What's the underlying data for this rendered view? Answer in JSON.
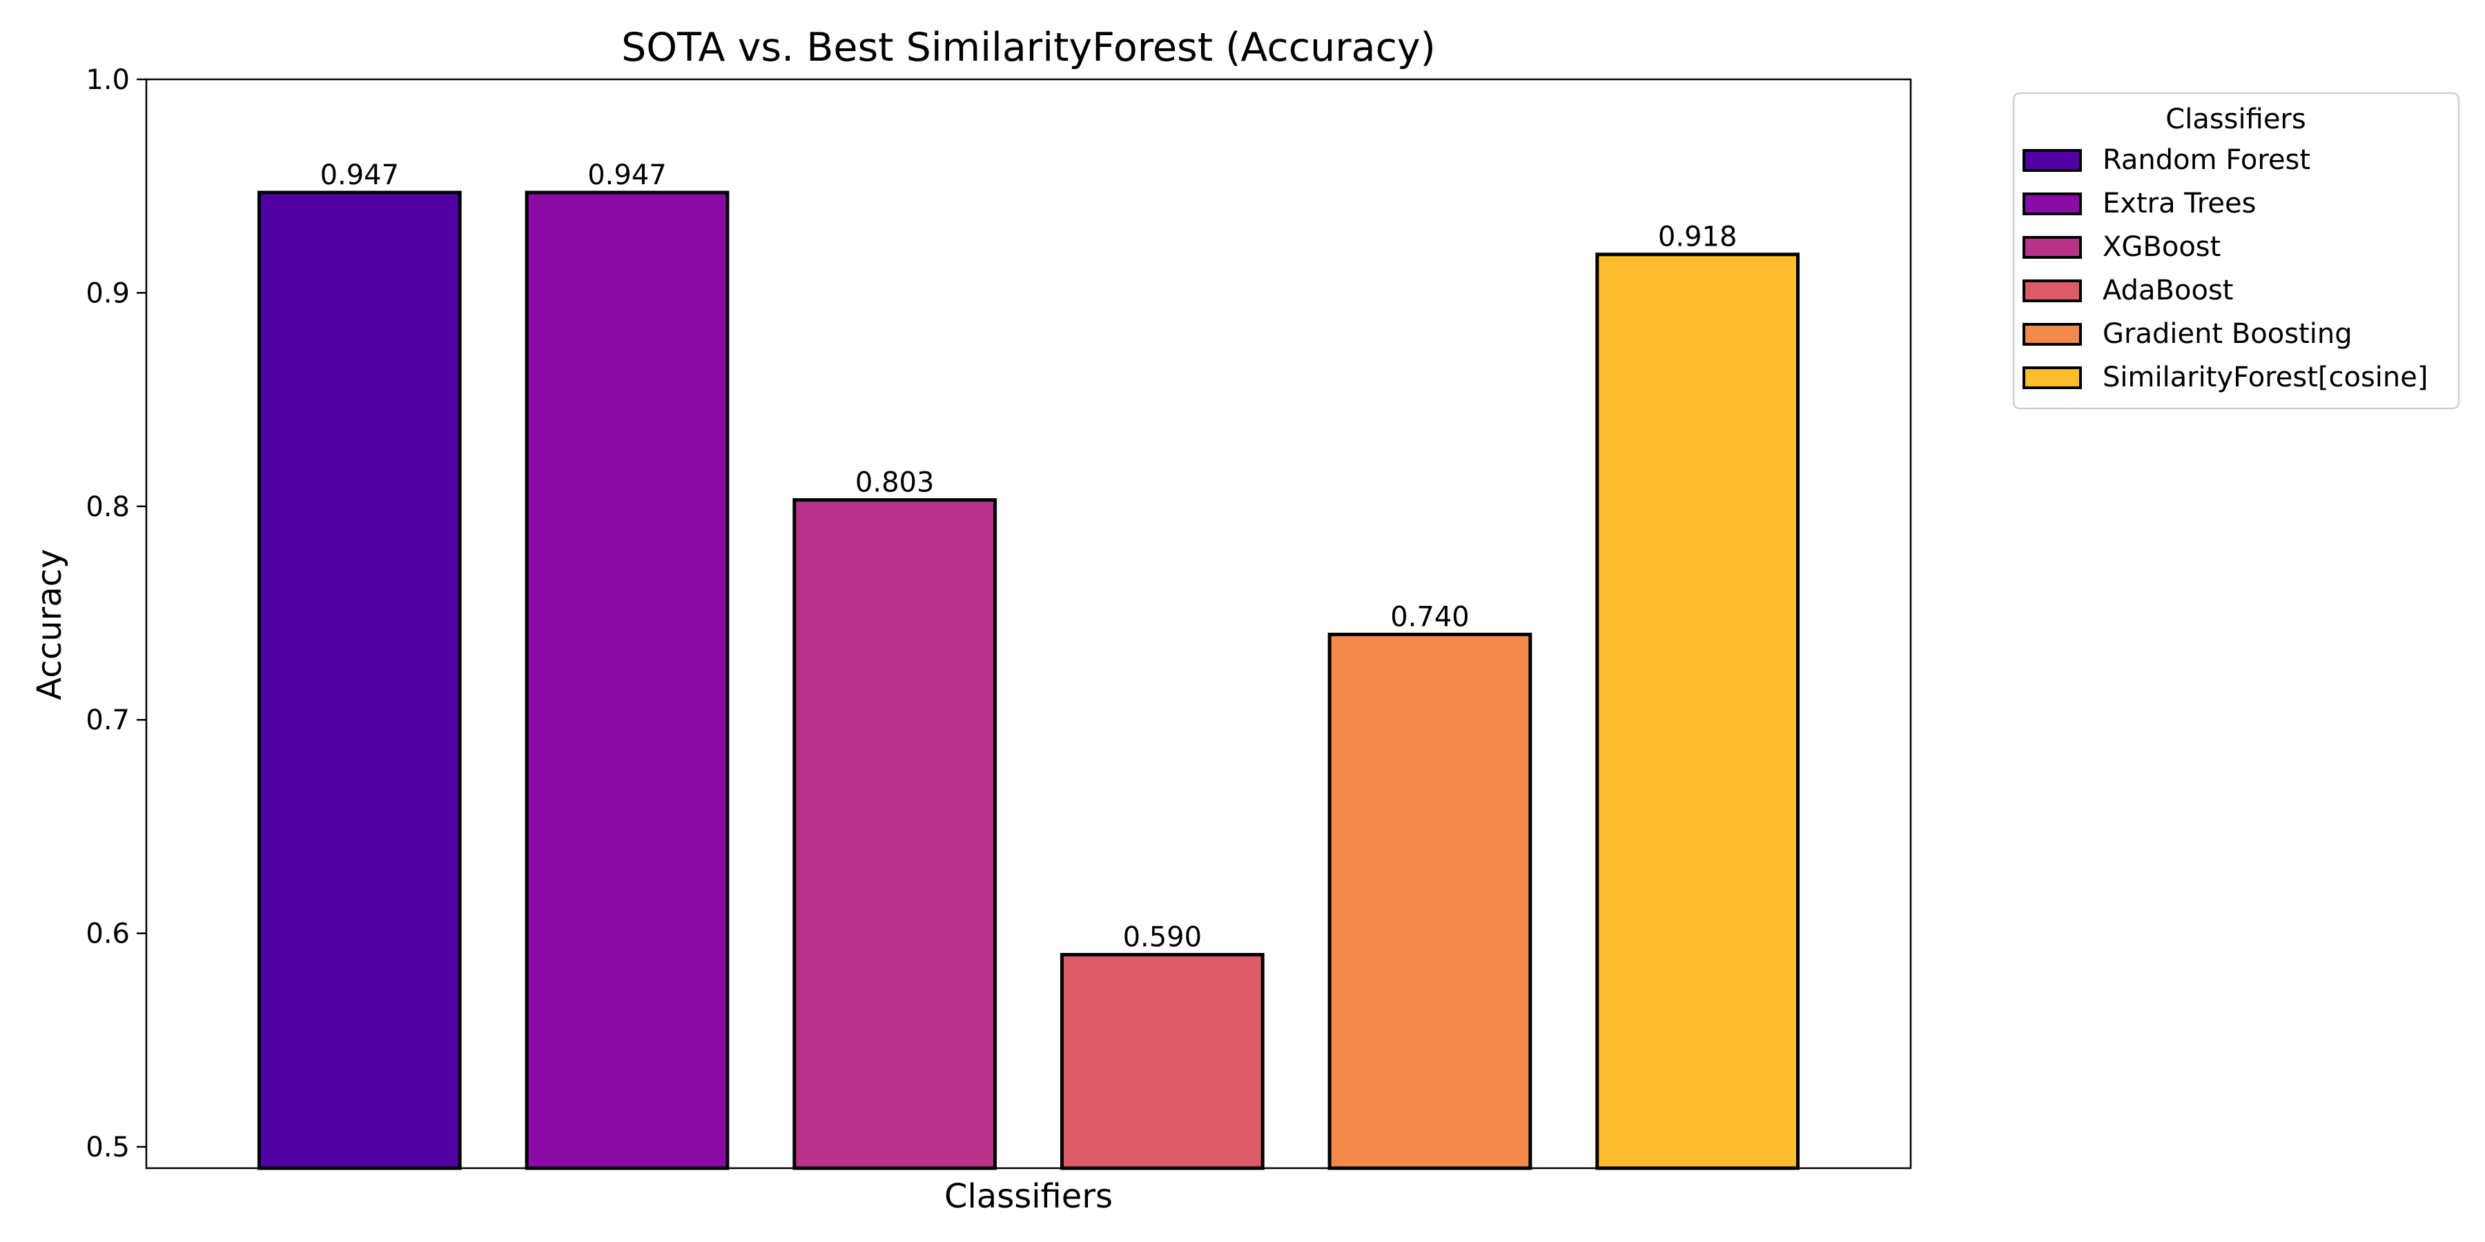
{
  "chart_data": {
    "type": "bar",
    "title": "SOTA vs. Best SimilarityForest (Accuracy)",
    "xlabel": "Classifiers",
    "ylabel": "Accuracy",
    "ylim": [
      0.49,
      1.0
    ],
    "yticks": [
      0.5,
      0.6,
      0.7,
      0.8,
      0.9,
      1.0
    ],
    "ytick_labels": [
      "0.5",
      "0.6",
      "0.7",
      "0.8",
      "0.9",
      "1.0"
    ],
    "grid": false,
    "legend_title": "Classifiers",
    "legend_position": "outside-top-right",
    "categories": [
      "Random Forest",
      "Extra Trees",
      "XGBoost",
      "AdaBoost",
      "Gradient Boosting",
      "SimilarityForest[cosine]"
    ],
    "values": [
      0.947,
      0.947,
      0.803,
      0.59,
      0.74,
      0.918
    ],
    "value_labels": [
      "0.947",
      "0.947",
      "0.803",
      "0.590",
      "0.740",
      "0.918"
    ],
    "colors": [
      "#5002a2",
      "#8a0ba5",
      "#b93289",
      "#db5b68",
      "#f3894b",
      "#fdbd2e"
    ],
    "edge_color": "#000000"
  }
}
